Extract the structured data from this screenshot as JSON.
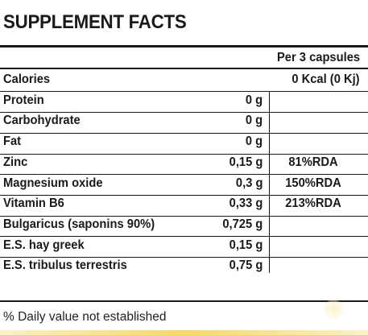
{
  "title": "SUPPLEMENT FACTS",
  "serving_header": "Per 3 capsules",
  "rows": [
    {
      "name": "Calories",
      "amount": "0 Kcal (0 Kj)",
      "rda": ""
    },
    {
      "name": "Protein",
      "amount": "0 g",
      "rda": ""
    },
    {
      "name": "Carbohydrate",
      "amount": "0 g",
      "rda": ""
    },
    {
      "name": "Fat",
      "amount": "0 g",
      "rda": ""
    },
    {
      "name": "Zinc",
      "amount": "0,15 g",
      "rda": "81%RDA"
    },
    {
      "name": "Magnesium oxide",
      "amount": "0,3 g",
      "rda": "150%RDA"
    },
    {
      "name": "Vitamin B6",
      "amount": "0,33 g",
      "rda": "213%RDA"
    },
    {
      "name": "Bulgaricus (saponins 90%)",
      "amount": "0,725 g",
      "rda": ""
    },
    {
      "name": "E.S. hay greek",
      "amount": "0,15 g",
      "rda": ""
    },
    {
      "name": "E.S. tribulus terrestris",
      "amount": "0,75 g",
      "rda": ""
    }
  ],
  "footnote": "% Daily value not established"
}
